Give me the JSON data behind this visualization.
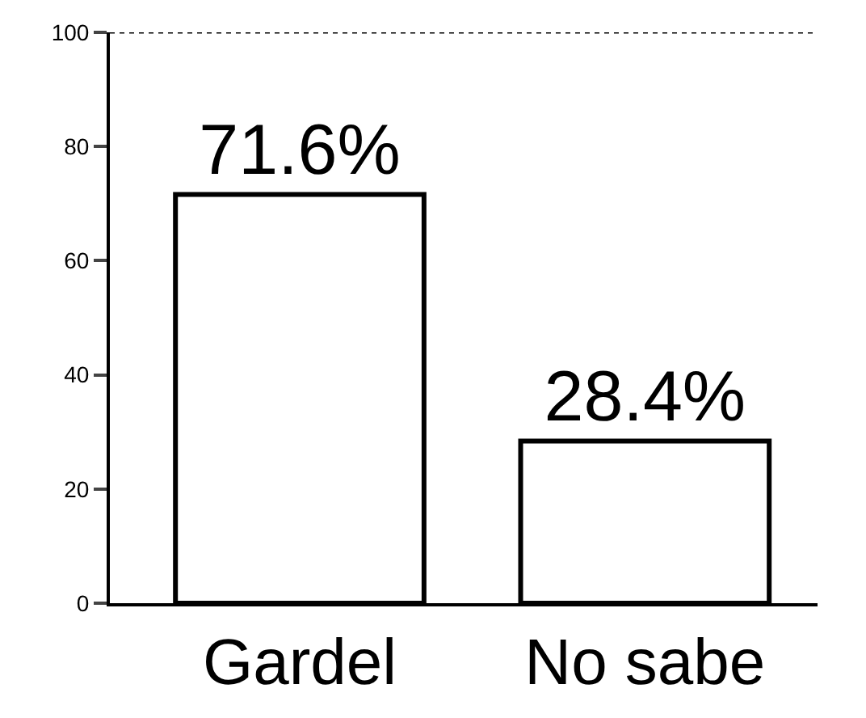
{
  "chart_data": {
    "type": "bar",
    "categories": [
      "Gardel",
      "No sabe"
    ],
    "values": [
      71.6,
      28.4
    ],
    "value_labels": [
      "71.6%",
      "28.4%"
    ],
    "color": "#ffffff",
    "ylim": [
      0,
      100
    ],
    "yticks": [
      0,
      20,
      40,
      60,
      80,
      100
    ],
    "ref_lines": [
      {
        "axis": "y",
        "value": 100,
        "line_style": "dotted",
        "color": "#000000"
      }
    ]
  }
}
